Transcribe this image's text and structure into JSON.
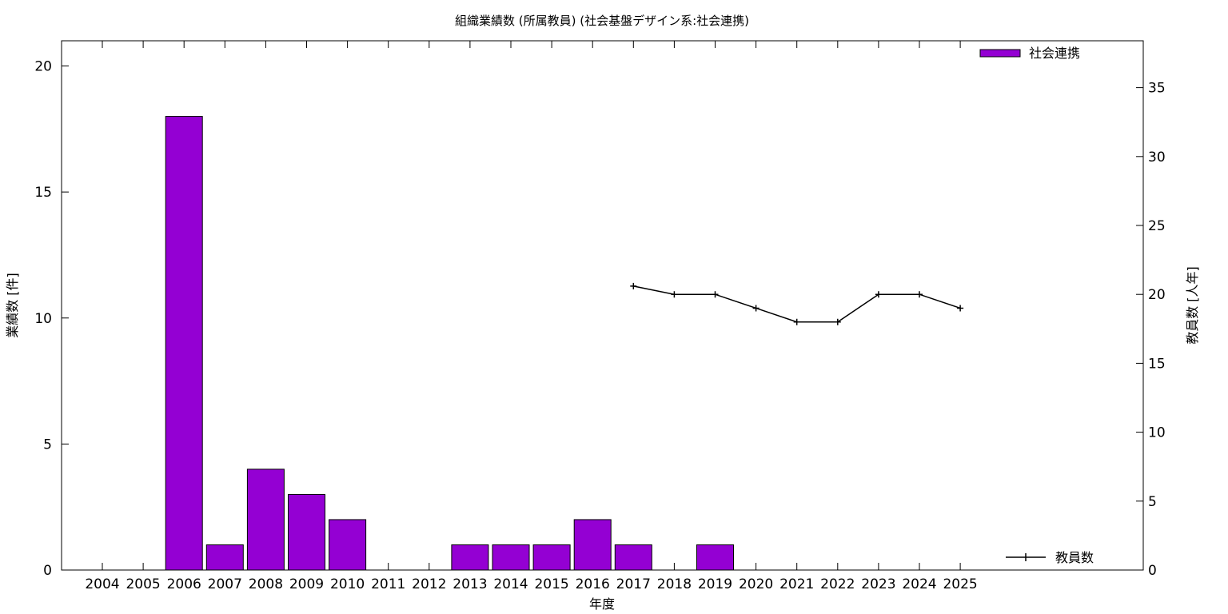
{
  "chart_data": {
    "type": "bar",
    "title": "組織業績数 (所属教員) (社会基盤デザイン系:社会連携)",
    "xlabel": "年度",
    "ylabel": "業績数 [件]",
    "y2label": "教員数 [人年]",
    "categories": [
      "2004",
      "2005",
      "2006",
      "2007",
      "2008",
      "2009",
      "2010",
      "2011",
      "2012",
      "2013",
      "2014",
      "2015",
      "2016",
      "2017",
      "2018",
      "2019",
      "2020",
      "2021",
      "2022",
      "2023",
      "2024",
      "2025"
    ],
    "ylim": [
      0,
      21
    ],
    "yticks": [
      0,
      5,
      10,
      15,
      20
    ],
    "y2lim": [
      0,
      38.4
    ],
    "y2ticks": [
      0,
      5,
      10,
      15,
      20,
      25,
      30,
      35
    ],
    "grid": false,
    "series": [
      {
        "name": "社会連携",
        "type": "bar",
        "axis": "y",
        "color": "#9400d3",
        "values": [
          0,
          0,
          18,
          1,
          4,
          3,
          2,
          0,
          0,
          1,
          1,
          1,
          2,
          1,
          0,
          1,
          0,
          0,
          0,
          0,
          0,
          0
        ]
      },
      {
        "name": "教員数",
        "type": "line",
        "axis": "y2",
        "color": "#000000",
        "x": [
          "2017",
          "2018",
          "2019",
          "2020",
          "2021",
          "2022",
          "2023",
          "2024",
          "2025"
        ],
        "values": [
          20.6,
          20,
          20,
          19,
          18,
          18,
          20,
          20,
          19
        ]
      }
    ],
    "legend": {
      "bars": "top-right",
      "line": "bottom-right"
    }
  }
}
